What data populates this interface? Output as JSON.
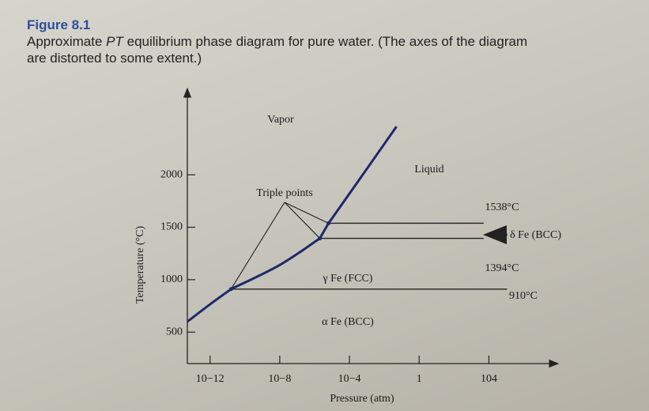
{
  "figure": {
    "label": "Figure 8.1",
    "caption": [
      "Approximate ",
      "PT",
      " equilibrium phase diagram for pure water. (The axes of the diagram",
      "are distorted to some extent.)"
    ]
  },
  "chart_data": {
    "type": "line",
    "xlabel": "Pressure (atm)",
    "ylabel": "Temperature (°C)",
    "xscale": "log",
    "xlim": [
      5e-14,
      50000000.0
    ],
    "ylim": [
      200,
      2800
    ],
    "xticks": [
      {
        "value": 1e-12,
        "label": "10−12"
      },
      {
        "value": 1e-08,
        "label": "10−8"
      },
      {
        "value": 0.0001,
        "label": "10−4"
      },
      1,
      {
        "value": 10000.0,
        "label": "104"
      }
    ],
    "yticks": [
      500,
      1000,
      1500,
      2000
    ],
    "series": [
      {
        "color": "#1c2a6b",
        "x": [
          5e-14,
          1e-12,
          1.6e-11
        ],
        "values": [
          600,
          765,
          910
        ]
      },
      {
        "color": "#1c2a6b",
        "x": [
          1.6e-11,
          1e-08,
          2e-06
        ],
        "values": [
          910,
          1140,
          1394
        ]
      },
      {
        "color": "#1c2a6b",
        "x": [
          2e-06,
          6.3e-06
        ],
        "values": [
          1394,
          1538
        ]
      },
      {
        "color": "#1c2a6b",
        "x": [
          6.3e-06,
          0.0001,
          0.05
        ],
        "values": [
          1538,
          1820,
          2460
        ]
      },
      {
        "color": "#222222",
        "x": [
          1.6e-11,
          110000.0
        ],
        "values": [
          910,
          910
        ]
      },
      {
        "color": "#222222",
        "x": [
          2e-06,
          5000.0
        ],
        "values": [
          1394,
          1394
        ]
      },
      {
        "color": "#222222",
        "x": [
          6.3e-06,
          5000.0
        ],
        "values": [
          1538,
          1538
        ]
      }
    ],
    "annotations": [
      "Vapor",
      "Liquid",
      "Triple points",
      "γ Fe (FCC)",
      "α Fe (BCC)",
      "δ Fe (BCC)",
      "1538°C",
      "1394°C",
      "910°C"
    ]
  }
}
